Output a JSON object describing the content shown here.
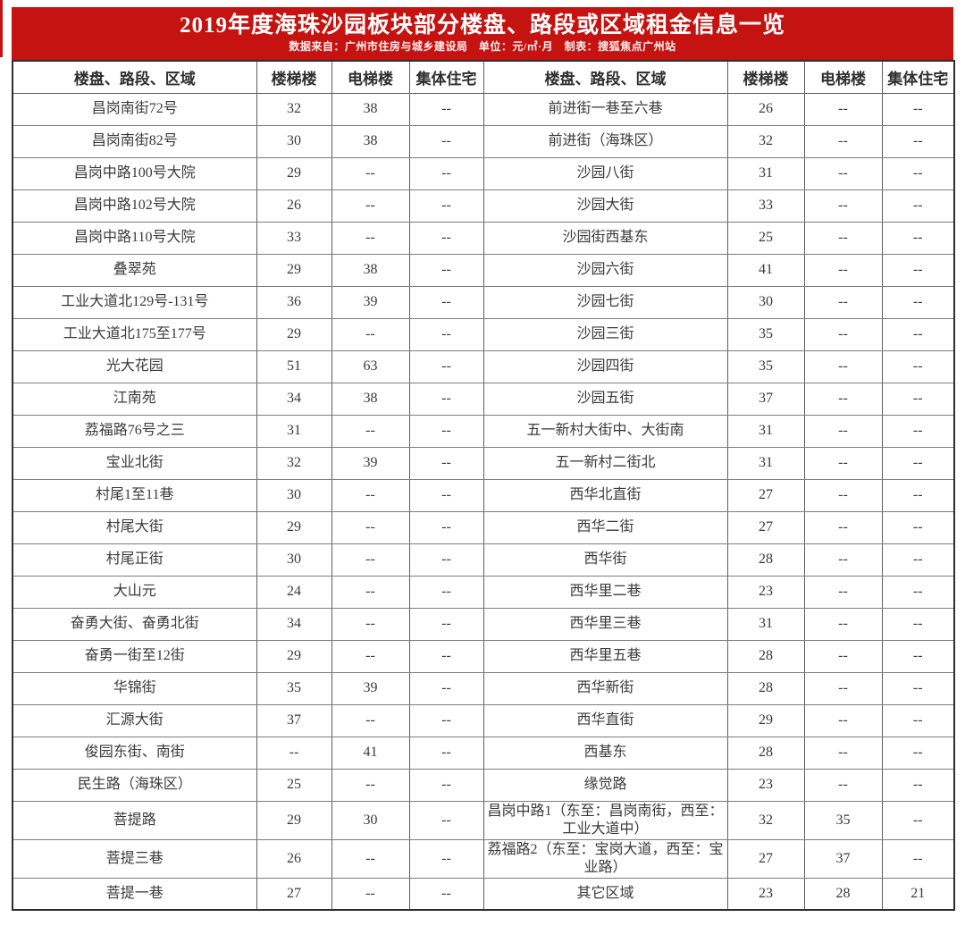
{
  "colors": {
    "accent_red": "#c41310",
    "text": "#3a3a3a"
  },
  "banner": {
    "title": "2019年度海珠沙园板块部分楼盘、路段或区域租金信息一览",
    "subtitle": "数据来自：广州市住房与城乡建设局　单位：元/㎡·月　制表：搜狐焦点广州站"
  },
  "table": {
    "headers": [
      "楼盘、路段、区域",
      "楼梯楼",
      "电梯楼",
      "集体住宅"
    ],
    "missing_value": "--",
    "left_rows": [
      [
        "昌岗南街72号",
        "32",
        "38",
        "--"
      ],
      [
        "昌岗南街82号",
        "30",
        "38",
        "--"
      ],
      [
        "昌岗中路100号大院",
        "29",
        "--",
        "--"
      ],
      [
        "昌岗中路102号大院",
        "26",
        "--",
        "--"
      ],
      [
        "昌岗中路110号大院",
        "33",
        "--",
        "--"
      ],
      [
        "叠翠苑",
        "29",
        "38",
        "--"
      ],
      [
        "工业大道北129号-131号",
        "36",
        "39",
        "--"
      ],
      [
        "工业大道北175至177号",
        "29",
        "--",
        "--"
      ],
      [
        "光大花园",
        "51",
        "63",
        "--"
      ],
      [
        "江南苑",
        "34",
        "38",
        "--"
      ],
      [
        "荔福路76号之三",
        "31",
        "--",
        "--"
      ],
      [
        "宝业北街",
        "32",
        "39",
        "--"
      ],
      [
        "村尾1至11巷",
        "30",
        "--",
        "--"
      ],
      [
        "村尾大街",
        "29",
        "--",
        "--"
      ],
      [
        "村尾正街",
        "30",
        "--",
        "--"
      ],
      [
        "大山元",
        "24",
        "--",
        "--"
      ],
      [
        "奋勇大街、奋勇北街",
        "34",
        "--",
        "--"
      ],
      [
        "奋勇一街至12街",
        "29",
        "--",
        "--"
      ],
      [
        "华锦街",
        "35",
        "39",
        "--"
      ],
      [
        "汇源大街",
        "37",
        "--",
        "--"
      ],
      [
        "俊园东街、南街",
        "--",
        "41",
        "--"
      ],
      [
        "民生路（海珠区）",
        "25",
        "--",
        "--"
      ],
      [
        "菩提路",
        "29",
        "30",
        "--"
      ],
      [
        "菩提三巷",
        "26",
        "--",
        "--"
      ],
      [
        "菩提一巷",
        "27",
        "--",
        "--"
      ]
    ],
    "right_rows": [
      [
        "前进街一巷至六巷",
        "26",
        "--",
        "--"
      ],
      [
        "前进街（海珠区）",
        "32",
        "--",
        "--"
      ],
      [
        "沙园八街",
        "31",
        "--",
        "--"
      ],
      [
        "沙园大街",
        "33",
        "--",
        "--"
      ],
      [
        "沙园街西基东",
        "25",
        "--",
        "--"
      ],
      [
        "沙园六街",
        "41",
        "--",
        "--"
      ],
      [
        "沙园七街",
        "30",
        "--",
        "--"
      ],
      [
        "沙园三街",
        "35",
        "--",
        "--"
      ],
      [
        "沙园四街",
        "35",
        "--",
        "--"
      ],
      [
        "沙园五街",
        "37",
        "--",
        "--"
      ],
      [
        "五一新村大街中、大街南",
        "31",
        "--",
        "--"
      ],
      [
        "五一新村二街北",
        "31",
        "--",
        "--"
      ],
      [
        "西华北直街",
        "27",
        "--",
        "--"
      ],
      [
        "西华二街",
        "27",
        "--",
        "--"
      ],
      [
        "西华街",
        "28",
        "--",
        "--"
      ],
      [
        "西华里二巷",
        "23",
        "--",
        "--"
      ],
      [
        "西华里三巷",
        "31",
        "--",
        "--"
      ],
      [
        "西华里五巷",
        "28",
        "--",
        "--"
      ],
      [
        "西华新街",
        "28",
        "--",
        "--"
      ],
      [
        "西华直街",
        "29",
        "--",
        "--"
      ],
      [
        "西基东",
        "28",
        "--",
        "--"
      ],
      [
        "缘觉路",
        "23",
        "--",
        "--"
      ],
      [
        "昌岗中路1（东至：昌岗南街，西至：工业大道中）",
        "32",
        "35",
        "--"
      ],
      [
        "荔福路2（东至：宝岗大道，西至：宝业路）",
        "27",
        "37",
        "--"
      ],
      [
        "其它区域",
        "23",
        "28",
        "21"
      ]
    ]
  }
}
